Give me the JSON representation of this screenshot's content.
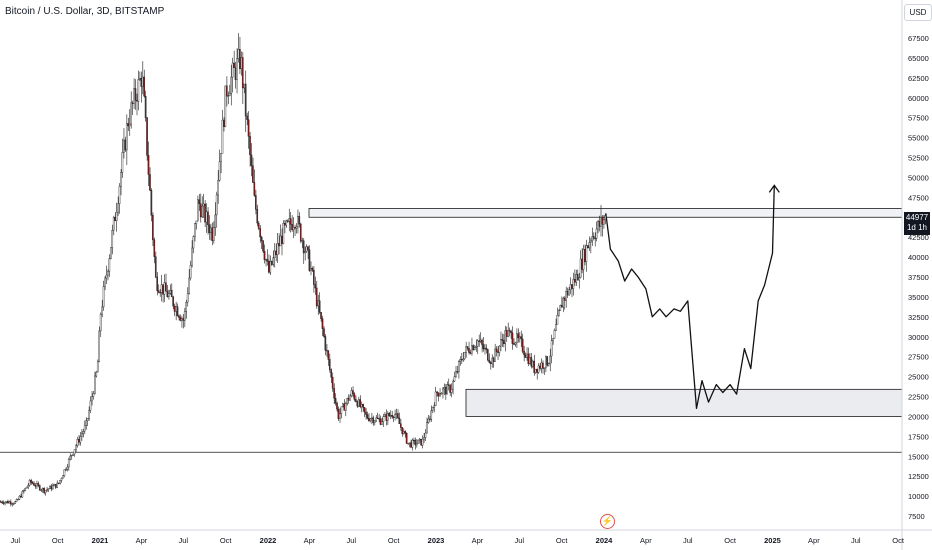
{
  "header": {
    "title": "Bitcoin / U.S. Dollar, 3D, BITSTAMP",
    "currency_button": "USD"
  },
  "price_tag": {
    "price": "44977",
    "countdown": "1d 1h"
  },
  "logo_icon": "tradingview-logo-icon",
  "chart_data": {
    "type": "candlestick",
    "title": "Bitcoin / U.S. Dollar, 3D, BITSTAMP",
    "y_ticks": [
      7500,
      10000,
      12500,
      15000,
      17500,
      20000,
      22500,
      25000,
      27500,
      30000,
      32500,
      35000,
      37500,
      40000,
      42500,
      45000,
      47500,
      50000,
      52500,
      55000,
      57500,
      60000,
      62500,
      65000,
      67500
    ],
    "ylim": [
      6000,
      70500
    ],
    "x_ticks": [
      "Jul",
      "Oct",
      "2021",
      "Apr",
      "Jul",
      "Oct",
      "2022",
      "Apr",
      "Jul",
      "Oct",
      "2023",
      "Apr",
      "Jul",
      "Oct",
      "2024",
      "Apr",
      "Jul",
      "Oct",
      "2025",
      "Apr",
      "Jul",
      "Oct"
    ],
    "price_path": [
      [
        "2020-06",
        9300
      ],
      [
        "2020-07",
        9200
      ],
      [
        "2020-08",
        11800
      ],
      [
        "2020-09",
        10700
      ],
      [
        "2020-10",
        11500
      ],
      [
        "2020-11",
        15500
      ],
      [
        "2020-12",
        19000
      ],
      [
        "2020-12-25",
        26000
      ],
      [
        "2021-01",
        33000
      ],
      [
        "2021-02",
        45000
      ],
      [
        "2021-03",
        57000
      ],
      [
        "2021-04",
        63000
      ],
      [
        "2021-05",
        37000
      ],
      [
        "2021-06",
        35000
      ],
      [
        "2021-07",
        32000
      ],
      [
        "2021-08",
        47000
      ],
      [
        "2021-09",
        43000
      ],
      [
        "2021-10",
        61000
      ],
      [
        "2021-11",
        65000
      ],
      [
        "2021-12",
        47000
      ],
      [
        "2022-01",
        38000
      ],
      [
        "2022-02",
        43000
      ],
      [
        "2022-03",
        45000
      ],
      [
        "2022-04",
        39000
      ],
      [
        "2022-05",
        30000
      ],
      [
        "2022-06",
        20000
      ],
      [
        "2022-07",
        23000
      ],
      [
        "2022-08",
        20000
      ],
      [
        "2022-09",
        19500
      ],
      [
        "2022-10",
        20500
      ],
      [
        "2022-11",
        16500
      ],
      [
        "2022-12",
        16800
      ],
      [
        "2023-01",
        23000
      ],
      [
        "2023-02",
        23500
      ],
      [
        "2023-03",
        28000
      ],
      [
        "2023-04",
        29500
      ],
      [
        "2023-05",
        27000
      ],
      [
        "2023-06",
        30500
      ],
      [
        "2023-07",
        29300
      ],
      [
        "2023-08",
        26000
      ],
      [
        "2023-09",
        27000
      ],
      [
        "2023-10",
        34500
      ],
      [
        "2023-11",
        37500
      ],
      [
        "2023-12",
        42500
      ],
      [
        "2024-01-03",
        44977
      ]
    ],
    "annotations": {
      "resistance_zone": [
        45000,
        46100
      ],
      "support_zone": [
        20000,
        23400
      ],
      "horizontal_line": 15500,
      "projection_path": [
        [
          "2024-01-05",
          45500
        ],
        [
          "2024-01-15",
          41000
        ],
        [
          "2024-02-01",
          39500
        ],
        [
          "2024-02-15",
          37000
        ],
        [
          "2024-03-01",
          38500
        ],
        [
          "2024-03-15",
          37500
        ],
        [
          "2024-04-01",
          36000
        ],
        [
          "2024-04-15",
          32500
        ],
        [
          "2024-05-01",
          33500
        ],
        [
          "2024-05-15",
          32500
        ],
        [
          "2024-06-01",
          33500
        ],
        [
          "2024-06-15",
          33200
        ],
        [
          "2024-07-01",
          34500
        ],
        [
          "2024-07-20",
          21000
        ],
        [
          "2024-08-01",
          24500
        ],
        [
          "2024-08-15",
          21800
        ],
        [
          "2024-09-01",
          24000
        ],
        [
          "2024-09-15",
          23000
        ],
        [
          "2024-10-01",
          24000
        ],
        [
          "2024-10-15",
          22800
        ],
        [
          "2024-11-01",
          28500
        ],
        [
          "2024-11-15",
          26000
        ],
        [
          "2024-12-01",
          34500
        ],
        [
          "2024-12-15",
          36500
        ],
        [
          "2025-01-01",
          40500
        ],
        [
          "2025-01-05",
          49000
        ]
      ]
    },
    "grid": false
  }
}
